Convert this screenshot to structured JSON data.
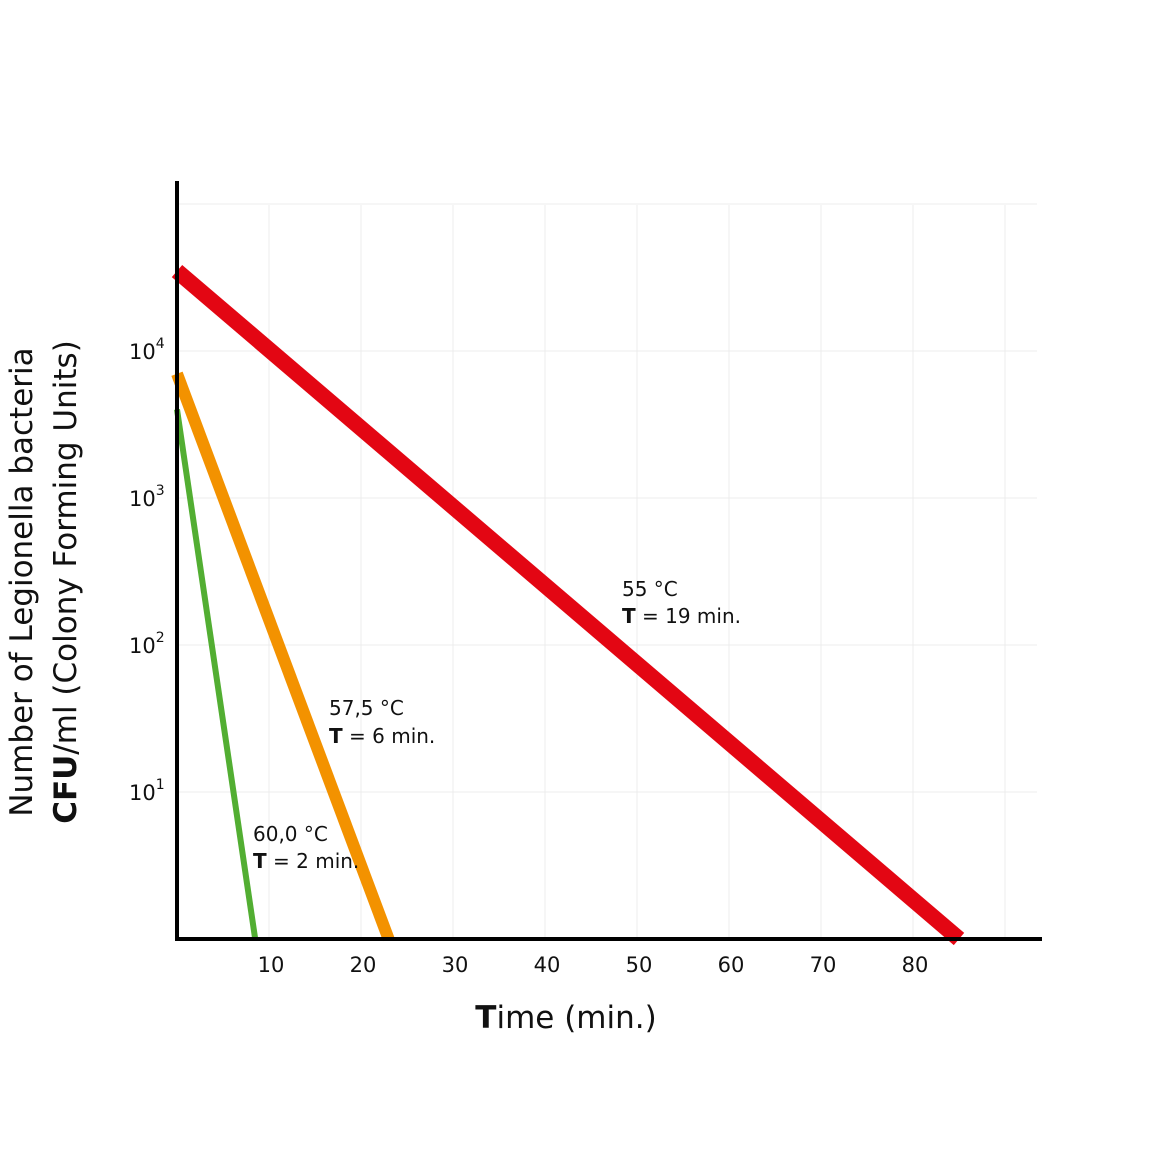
{
  "chart_data": {
    "type": "line",
    "x_ticks": [
      "10",
      "20",
      "30",
      "40",
      "50",
      "60",
      "70",
      "80"
    ],
    "xlim": [
      0,
      93
    ],
    "y_scale": "log",
    "ylim": [
      1,
      100000
    ],
    "y_ticks": [
      {
        "base": "10",
        "exp": "1"
      },
      {
        "base": "10",
        "exp": "2"
      },
      {
        "base": "10",
        "exp": "3"
      },
      {
        "base": "10",
        "exp": "4"
      }
    ],
    "xlabel": {
      "bold": "T",
      "rest": "ime (min.)"
    },
    "ylabel_line1": "Number of Legionella bacteria",
    "ylabel_line2": {
      "bold": "CFU",
      "rest": "/ml  (Colony Forming Units)"
    },
    "grid": true,
    "series": [
      {
        "color": "#e30613",
        "points": [
          [
            0,
            35000
          ],
          [
            85,
            1
          ]
        ]
      },
      {
        "color": "#f39200",
        "points": [
          [
            0,
            7000
          ],
          [
            23,
            1
          ]
        ]
      },
      {
        "color": "#52ae32",
        "points": [
          [
            0,
            4000
          ],
          [
            8.5,
            1
          ]
        ]
      }
    ],
    "annotations": [
      {
        "temp": "55 °C",
        "t_bold": "T",
        "t_rest": " = 19 min."
      },
      {
        "temp": "57,5 °C",
        "t_bold": "T",
        "t_rest": " = 6 min."
      },
      {
        "temp": "60,0 °C",
        "t_bold": "T",
        "t_rest": " = 2 min."
      }
    ]
  }
}
